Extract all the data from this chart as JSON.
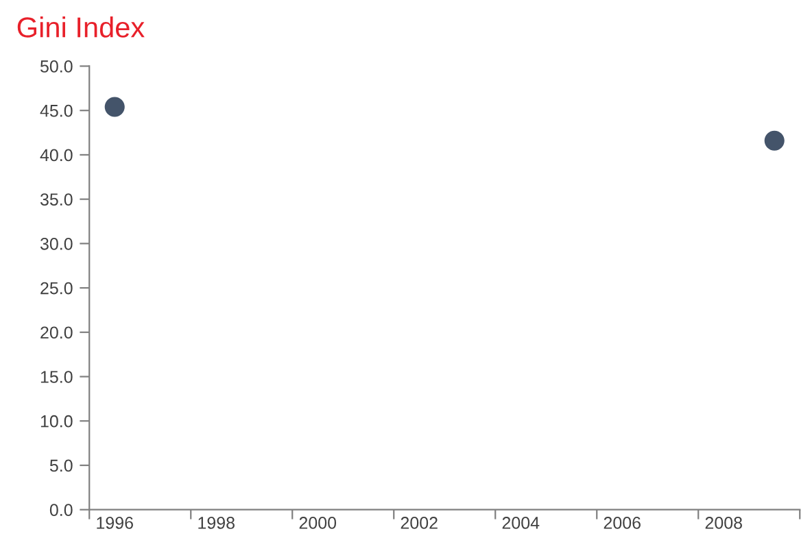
{
  "chart_data": {
    "type": "scatter",
    "title": "Gini Index",
    "categories": [
      "1996",
      null,
      "1998",
      null,
      "2000",
      null,
      "2002",
      null,
      "2004",
      null,
      "2006",
      null,
      "2008",
      null
    ],
    "series": [
      {
        "color": "#44546a",
        "values": [
          45.4,
          null,
          null,
          null,
          null,
          null,
          null,
          null,
          null,
          null,
          null,
          null,
          null,
          41.6
        ]
      }
    ],
    "ylim": [
      0,
      50
    ],
    "yticks": [
      {
        "value": 0,
        "label": "0.0"
      },
      {
        "value": 5,
        "label": "5.0"
      },
      {
        "value": 10,
        "label": "10.0"
      },
      {
        "value": 15,
        "label": "15.0"
      },
      {
        "value": 20,
        "label": "20.0"
      },
      {
        "value": 25,
        "label": "25.0"
      },
      {
        "value": 30,
        "label": "30.0"
      },
      {
        "value": 35,
        "label": "35.0"
      },
      {
        "value": 40,
        "label": "40.0"
      },
      {
        "value": 45,
        "label": "45.0"
      },
      {
        "value": 50,
        "label": "50.0"
      }
    ],
    "grid": false,
    "marker": "circle"
  }
}
